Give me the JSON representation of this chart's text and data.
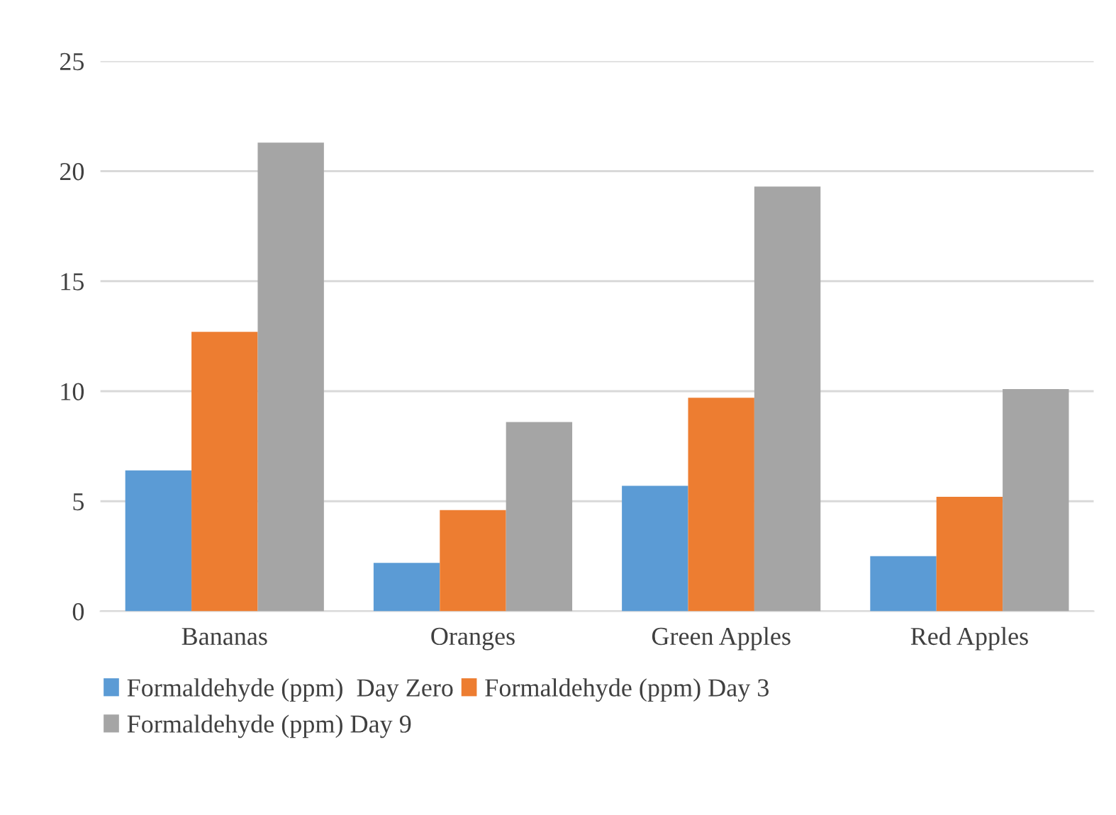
{
  "chart_data": {
    "type": "bar",
    "categories": [
      "Bananas",
      "Oranges",
      "Green Apples",
      "Red Apples"
    ],
    "series": [
      {
        "name": "Formaldehyde (ppm)  Day Zero",
        "color": "#5b9bd5",
        "values": [
          6.4,
          2.2,
          5.7,
          2.5
        ]
      },
      {
        "name": "Formaldehyde (ppm) Day 3",
        "color": "#ed7d31",
        "values": [
          12.7,
          4.6,
          9.7,
          5.2
        ]
      },
      {
        "name": "Formaldehyde (ppm) Day 9",
        "color": "#a5a5a5",
        "values": [
          21.3,
          8.6,
          19.3,
          10.1
        ]
      }
    ],
    "ylim": [
      0,
      25
    ],
    "yticks": [
      0,
      5,
      10,
      15,
      20,
      25
    ],
    "grid": "y",
    "legend": "bottom"
  }
}
